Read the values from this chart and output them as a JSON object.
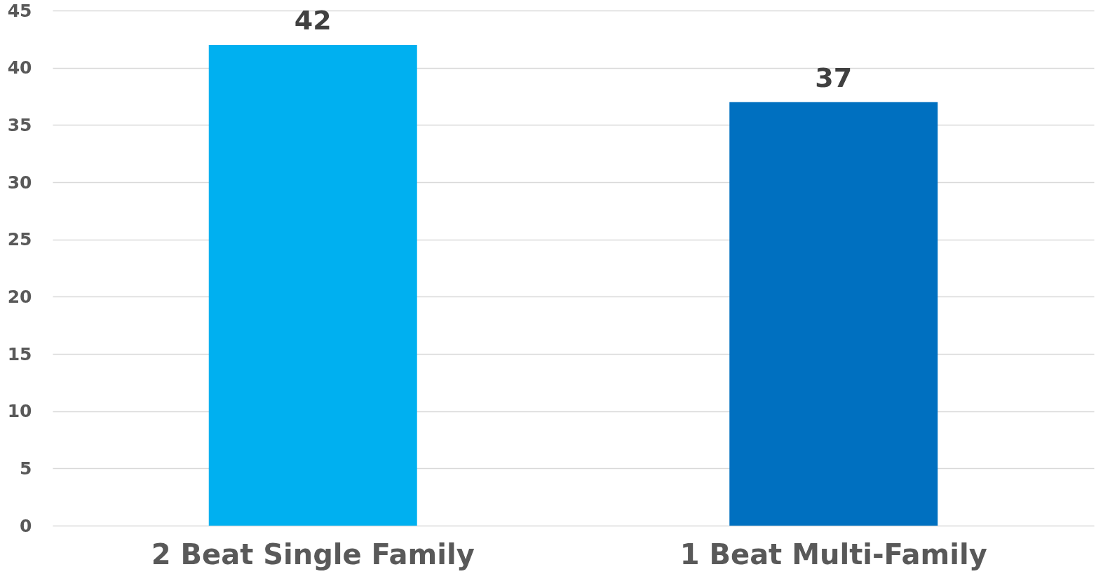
{
  "chart_data": {
    "type": "bar",
    "categories": [
      "2 Beat Single Family",
      "1 Beat Multi-Family"
    ],
    "values": [
      42,
      37
    ],
    "colors": [
      "#00b0f0",
      "#0070c0"
    ],
    "ylim": [
      0,
      45
    ],
    "yticks": [
      0,
      5,
      10,
      15,
      20,
      25,
      30,
      35,
      40,
      45
    ],
    "grid": "y",
    "data_labels": true
  }
}
